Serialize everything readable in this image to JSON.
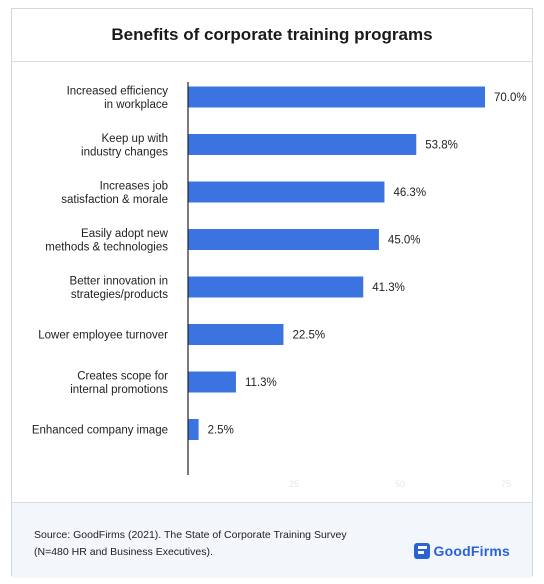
{
  "chart_data": {
    "type": "bar",
    "orientation": "horizontal",
    "title": "Benefits of corporate training programs",
    "categories": [
      [
        "Increased efficiency",
        "in workplace"
      ],
      [
        "Keep up with",
        "industry changes"
      ],
      [
        "Increases job",
        "satisfaction & morale"
      ],
      [
        "Easily adopt new",
        "methods & technologies"
      ],
      [
        "Better innovation in",
        "strategies/products"
      ],
      [
        "Lower employee turnover"
      ],
      [
        "Creates scope for",
        "internal promotions"
      ],
      [
        "Enhanced company image"
      ]
    ],
    "values": [
      70.0,
      53.8,
      46.3,
      45.0,
      41.3,
      22.5,
      11.3,
      2.5
    ],
    "value_labels": [
      "70.0%",
      "53.8%",
      "46.3%",
      "45.0%",
      "41.3%",
      "22.5%",
      "11.3%",
      "2.5%"
    ],
    "xlim": [
      0,
      75
    ],
    "xticks": [
      25,
      50,
      75
    ],
    "grid": false,
    "bar_color": "#3b73e0"
  },
  "footer": {
    "source_line1": "Source: GoodFirms (2021). The State of Corporate Training Survey",
    "source_line2": "(N=480 HR and Business Executives).",
    "brand": "GoodFirms"
  }
}
